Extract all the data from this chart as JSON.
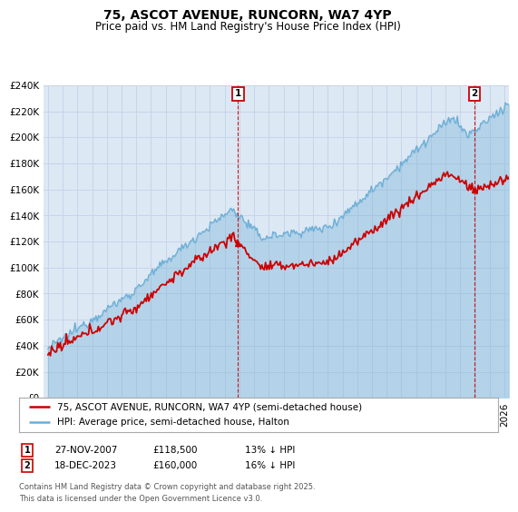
{
  "title": "75, ASCOT AVENUE, RUNCORN, WA7 4YP",
  "subtitle": "Price paid vs. HM Land Registry's House Price Index (HPI)",
  "ylabel_ticks": [
    "£0",
    "£20K",
    "£40K",
    "£60K",
    "£80K",
    "£100K",
    "£120K",
    "£140K",
    "£160K",
    "£180K",
    "£200K",
    "£220K",
    "£240K"
  ],
  "ylim": [
    0,
    240000
  ],
  "xlim_start": 1994.7,
  "xlim_end": 2026.3,
  "sale1_x": 2007.91,
  "sale1_y": 118500,
  "sale1_label": "1",
  "sale1_date": "27-NOV-2007",
  "sale1_price": "£118,500",
  "sale1_hpi": "13% ↓ HPI",
  "sale2_x": 2023.96,
  "sale2_y": 160000,
  "sale2_label": "2",
  "sale2_date": "18-DEC-2023",
  "sale2_price": "£160,000",
  "sale2_hpi": "16% ↓ HPI",
  "hpi_line_color": "#6baed6",
  "hpi_fill_color": "#d0e8f8",
  "price_line_color": "#cc0000",
  "sale_marker_color": "#cc0000",
  "grid_color": "#c8d4e8",
  "plot_bg_color": "#dce8f4",
  "legend_line1": "75, ASCOT AVENUE, RUNCORN, WA7 4YP (semi-detached house)",
  "legend_line2": "HPI: Average price, semi-detached house, Halton",
  "footnote": "Contains HM Land Registry data © Crown copyright and database right 2025.\nThis data is licensed under the Open Government Licence v3.0.",
  "title_fontsize": 10,
  "subtitle_fontsize": 8.5,
  "tick_fontsize": 7.5,
  "legend_fontsize": 7.5,
  "footnote_fontsize": 6
}
